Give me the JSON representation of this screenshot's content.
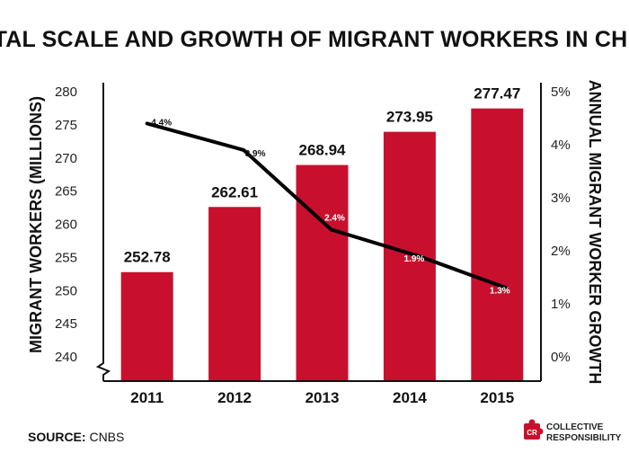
{
  "chart_data": {
    "type": "bar",
    "title": "TOTAL SCALE AND GROWTH OF MIGRANT WORKERS IN CHINA",
    "categories": [
      "2011",
      "2012",
      "2013",
      "2014",
      "2015"
    ],
    "series": [
      {
        "name": "MIGRANT WORKERS (MILLIONS)",
        "type": "bar",
        "axis": "left",
        "color": "#c8102e",
        "values": [
          252.78,
          262.61,
          268.94,
          273.95,
          277.47
        ],
        "labels": [
          "252.78",
          "262.61",
          "268.94",
          "273.95",
          "277.47"
        ]
      },
      {
        "name": "ANNUAL MIGRANT WORKER GROWTH",
        "type": "line",
        "axis": "right",
        "color": "#000000",
        "values": [
          4.4,
          3.9,
          2.4,
          1.9,
          1.3
        ],
        "labels": [
          "4.4%",
          "3.9%",
          "2.4%",
          "1.9%",
          "1.3%"
        ]
      }
    ],
    "ylabel": "MIGRANT WORKERS (MILLIONS)",
    "ylim": [
      240,
      280
    ],
    "yticks": [
      "240",
      "245",
      "250",
      "255",
      "260",
      "265",
      "270",
      "275",
      "280"
    ],
    "y2label": "ANNUAL MIGRANT WORKER GROWTH",
    "y2lim": [
      0,
      5
    ],
    "y2ticks": [
      "0%",
      "1%",
      "2%",
      "3%",
      "4%",
      "5%"
    ],
    "axis_break": "left-bottom",
    "grid": false
  },
  "footer": {
    "source_label": "SOURCE:",
    "source_value": "CNBS",
    "brand_mark": "CR",
    "brand_line1": "COLLECTIVE",
    "brand_line2": "RESPONSIBILITY",
    "brand_color": "#c8102e"
  }
}
